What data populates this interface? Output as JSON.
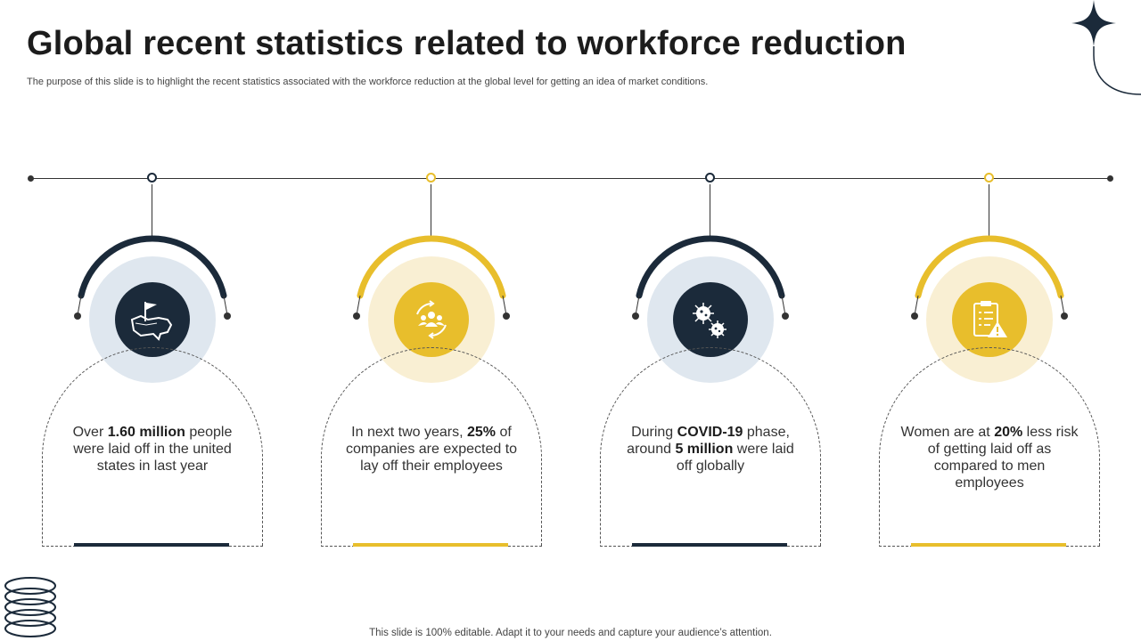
{
  "title": "Global recent statistics related to workforce reduction",
  "subtitle": "The purpose of this slide is to highlight the recent statistics associated with the workforce reduction at the global level for getting an idea of market conditions.",
  "footer": "This slide is 100% editable. Adapt it to your needs and capture your audience’s attention.",
  "colors": {
    "navy": "#1b2a3a",
    "gold": "#e8be2c",
    "navy_halo": "#dfe7ef",
    "gold_halo": "#f9efd3"
  },
  "cards": [
    {
      "icon": "usa-map-flag-icon",
      "theme": "navy",
      "pre": "Over ",
      "bold1": "1.60 million",
      "mid": " people were laid off in the united states in last year",
      "bold2": "",
      "post": ""
    },
    {
      "icon": "team-rotation-icon",
      "theme": "gold",
      "pre": "In next two years, ",
      "bold1": "25%",
      "mid": " of companies are expected to lay off their employees",
      "bold2": "",
      "post": ""
    },
    {
      "icon": "virus-icon",
      "theme": "navy",
      "pre": "During ",
      "bold1": "COVID-19",
      "mid": " phase, around ",
      "bold2": "5 million",
      "post": " were laid off globally"
    },
    {
      "icon": "clipboard-warning-icon",
      "theme": "gold",
      "pre": "Women are at ",
      "bold1": "20%",
      "mid": " less risk of getting laid off as compared to men employees",
      "bold2": "",
      "post": ""
    }
  ]
}
